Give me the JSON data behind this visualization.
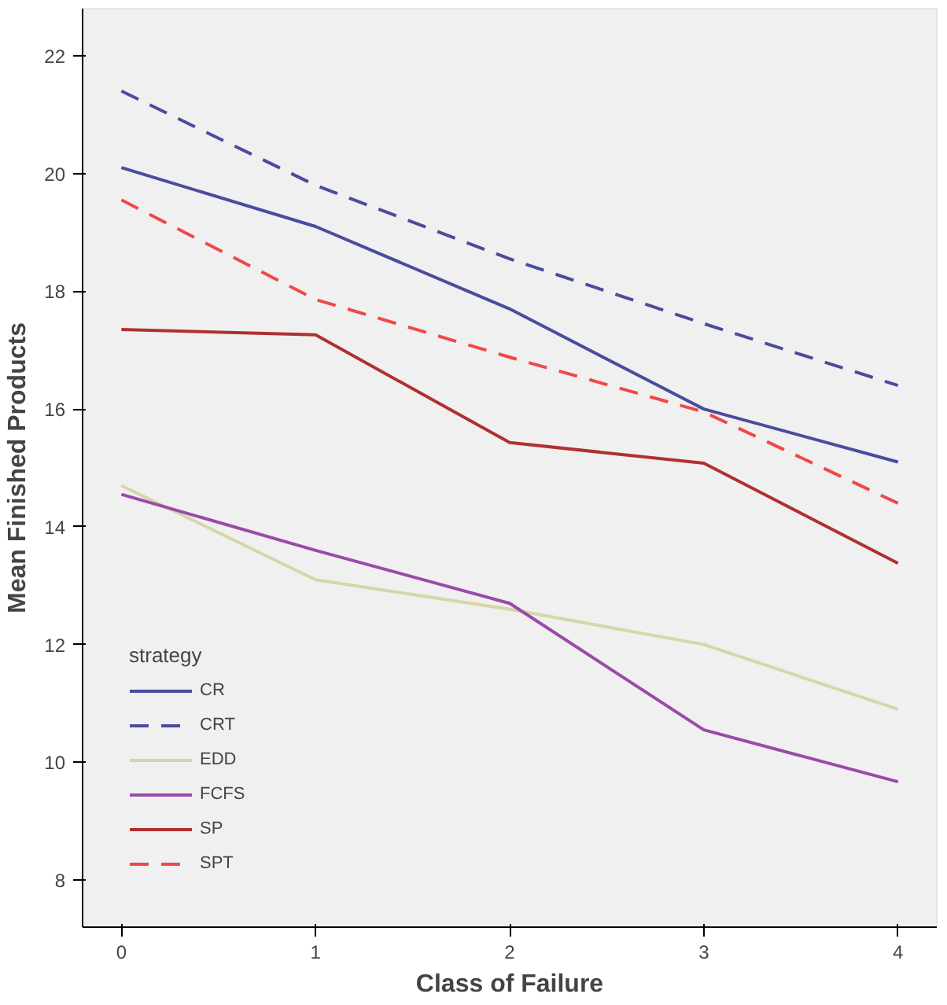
{
  "chart_data": {
    "type": "line",
    "xlabel": "Class of Failure",
    "ylabel": "Mean Finished Products",
    "legend_title": "strategy",
    "legend": "bottom left",
    "grid": false,
    "x": [
      0,
      1,
      2,
      3,
      4
    ],
    "xlim": [
      -0.2,
      4.2
    ],
    "xticks": [
      0,
      1,
      2,
      3,
      4
    ],
    "ylim": [
      7.2,
      22.8
    ],
    "yticks": [
      8,
      10,
      12,
      14,
      16,
      18,
      20,
      22
    ],
    "series": [
      {
        "name": "CR",
        "color": "#4b4b9e",
        "line_style": "solid",
        "values": [
          20.1,
          19.1,
          17.7,
          16.0,
          15.1
        ]
      },
      {
        "name": "CRT",
        "color": "#4b4b9e",
        "line_style": "dashed",
        "values": [
          21.4,
          19.8,
          18.55,
          17.45,
          16.4
        ]
      },
      {
        "name": "EDD",
        "color": "#d6d6a8",
        "line_style": "solid",
        "values": [
          14.7,
          13.1,
          12.6,
          12.0,
          10.9
        ]
      },
      {
        "name": "FCFS",
        "color": "#9a4aa8",
        "line_style": "solid",
        "values": [
          14.55,
          13.6,
          12.7,
          10.55,
          9.67
        ]
      },
      {
        "name": "SP",
        "color": "#b03030",
        "line_style": "solid",
        "values": [
          17.35,
          17.26,
          15.43,
          15.08,
          13.38
        ]
      },
      {
        "name": "SPT",
        "color": "#f04848",
        "line_style": "dashed",
        "values": [
          19.55,
          17.86,
          16.88,
          15.95,
          14.4
        ]
      }
    ]
  }
}
